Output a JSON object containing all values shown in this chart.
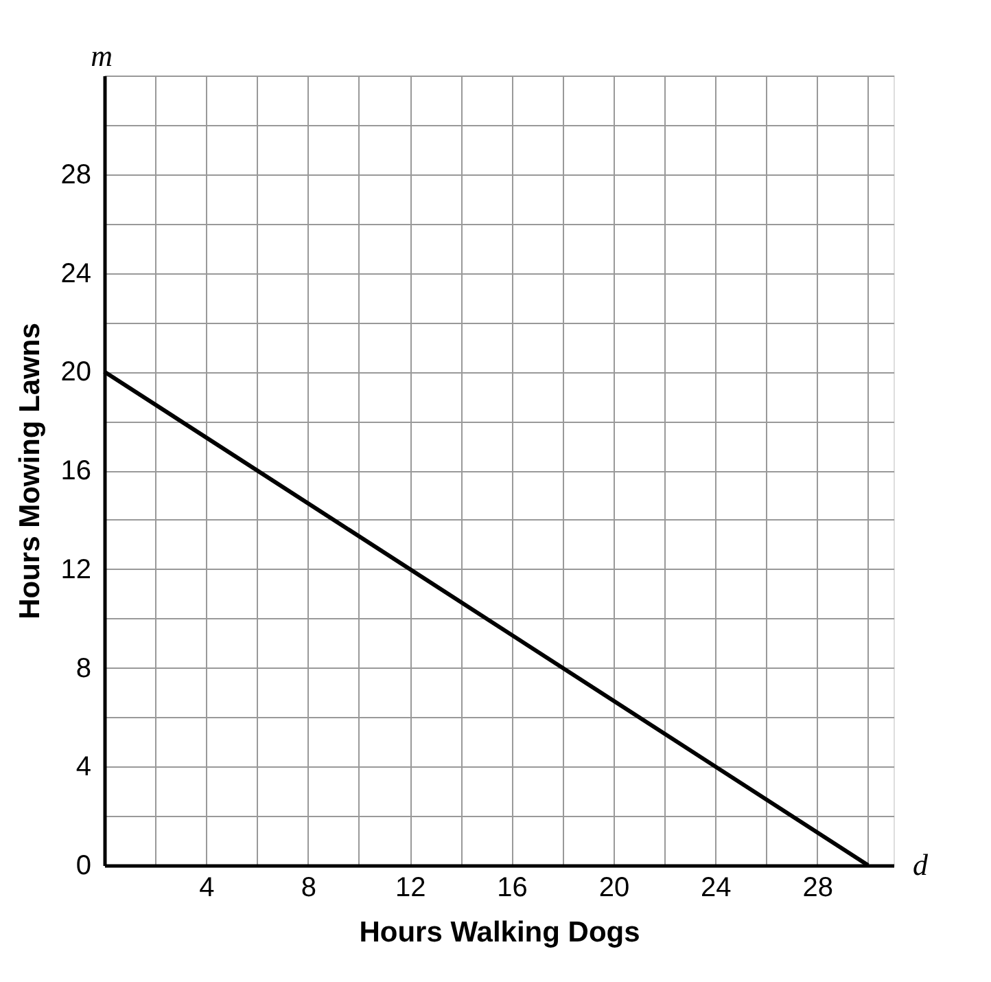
{
  "chart_data": {
    "type": "line",
    "xlabel": "Hours Walking Dogs",
    "ylabel": "Hours Mowing Lawns",
    "x": [
      0,
      30
    ],
    "series": [
      {
        "color": "#000000",
        "values": [
          20,
          0
        ]
      }
    ],
    "xlim": [
      0,
      31
    ],
    "ylim": [
      0,
      32
    ],
    "xticks": [
      {
        "value": 0,
        "label": null
      },
      {
        "value": 2,
        "label": null
      },
      4,
      {
        "value": 6,
        "label": null
      },
      8,
      {
        "value": 10,
        "label": null
      },
      12,
      {
        "value": 14,
        "label": null
      },
      16,
      {
        "value": 18,
        "label": null
      },
      20,
      {
        "value": 22,
        "label": null
      },
      24,
      {
        "value": 26,
        "label": null
      },
      28,
      {
        "value": 30,
        "label": null
      }
    ],
    "yticks": [
      0,
      {
        "value": 2,
        "label": null
      },
      4,
      {
        "value": 6,
        "label": null
      },
      8,
      {
        "value": 10,
        "label": null
      },
      12,
      {
        "value": 14,
        "label": null
      },
      16,
      {
        "value": 18,
        "label": null
      },
      20,
      {
        "value": 22,
        "label": null
      },
      24,
      {
        "value": 26,
        "label": null
      },
      28,
      {
        "value": 30,
        "label": null
      },
      {
        "value": 32,
        "label": null
      }
    ],
    "grid": true,
    "marker": "none",
    "line_style": "solid",
    "annotations": [
      "m",
      "d"
    ]
  }
}
